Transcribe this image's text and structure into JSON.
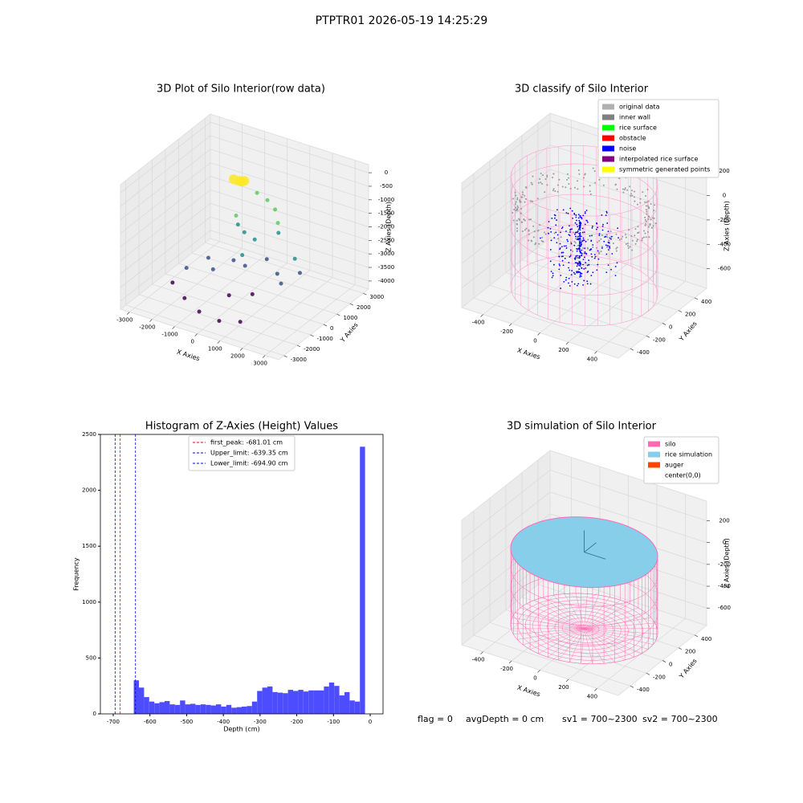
{
  "title": "PTPTR01 2026-05-19 14:25:29",
  "status": [
    "flag = 0",
    "avgDepth = 0 cm",
    "sv1 = 700~2300",
    "sv2 = 700~2300"
  ],
  "chart_data": [
    {
      "type": "scatter3d",
      "title": "3D Plot of Silo Interior(row data)",
      "xlabel": "X Axies",
      "ylabel": "Y Axies",
      "zlabel": "Z Axies (Depth)",
      "xlim": [
        -3400,
        3600
      ],
      "ylim": [
        -3400,
        3400
      ],
      "zlim": [
        -4300,
        300
      ],
      "xticks": [
        -3000,
        -2000,
        -1000,
        0,
        1000,
        2000,
        3000
      ],
      "yticks": [
        -3000,
        -2000,
        -1000,
        0,
        1000,
        2000,
        3000
      ],
      "zticks": [
        0,
        -500,
        -1000,
        -1500,
        -2000,
        -2500,
        -3000,
        -3500,
        -4000
      ],
      "x": [
        -1000,
        -1200,
        -900,
        -800,
        -1100,
        -400,
        0,
        400,
        700,
        900,
        -600,
        -200,
        200,
        -800,
        1800,
        2200,
        0,
        300,
        -1500,
        -1000,
        -500,
        500,
        1200,
        1600,
        -2000,
        -2500,
        -1500,
        -500,
        500,
        1200,
        0,
        800
      ],
      "y": [
        1500,
        1400,
        1700,
        1300,
        1600,
        1800,
        1900,
        1800,
        1500,
        1200,
        700,
        500,
        600,
        900,
        900,
        600,
        0,
        -300,
        0,
        -500,
        200,
        1000,
        600,
        200,
        -800,
        -1000,
        -1800,
        -2400,
        -2600,
        -2200,
        -1000,
        -600
      ],
      "z": [
        -800,
        -750,
        -850,
        -700,
        -900,
        -1200,
        -1400,
        -1600,
        -1900,
        -2100,
        -2000,
        -2100,
        -2300,
        -1800,
        -2700,
        -3000,
        -2700,
        -2900,
        -3200,
        -3300,
        -3100,
        -3100,
        -3300,
        -3400,
        -3400,
        -4000,
        -4000,
        -4000,
        -4000,
        -4000,
        -3800,
        -3700
      ]
    },
    {
      "type": "classify3d",
      "title": "3D classify of Silo Interior",
      "xlabel": "X Axies",
      "ylabel": "Y Axies",
      "zlabel": "Z Axies (Depth)",
      "xlim": [
        -550,
        550
      ],
      "ylim": [
        -550,
        550
      ],
      "zlim": [
        -760,
        260
      ],
      "xticks": [
        -400,
        -200,
        0,
        200,
        400
      ],
      "yticks": [
        -400,
        -200,
        0,
        200,
        400
      ],
      "zticks": [
        -600,
        -400,
        -200,
        0,
        200
      ],
      "legend": [
        {
          "name": "original data",
          "color": "#b0b0b0"
        },
        {
          "name": "inner wall",
          "color": "#808080"
        },
        {
          "name": "rice surface",
          "color": "#00ff00"
        },
        {
          "name": "obstacle",
          "color": "#ff0000"
        },
        {
          "name": "noise",
          "color": "#0000ff"
        },
        {
          "name": "interpolated rice surface",
          "color": "#800080"
        },
        {
          "name": "symmetric generated points",
          "color": "#ffff00"
        }
      ]
    },
    {
      "type": "histogram",
      "title": "Histogram of Z-Axies (Height) Values",
      "xlabel": "Depth (cm)",
      "ylabel": "Frequency",
      "color": "#4d4dff",
      "bins": [
        -644,
        -630,
        -616,
        -602,
        -588,
        -574,
        -560,
        -546,
        -532,
        -518,
        -504,
        -490,
        -476,
        -462,
        -448,
        -434,
        -420,
        -406,
        -392,
        -378,
        -364,
        -350,
        -336,
        -322,
        -308,
        -294,
        -280,
        -266,
        -252,
        -238,
        -224,
        -210,
        -196,
        -182,
        -168,
        -154,
        -140,
        -126,
        -112,
        -98,
        -84,
        -70,
        -56,
        -42,
        -28,
        -14
      ],
      "values": [
        300,
        235,
        150,
        110,
        95,
        105,
        115,
        85,
        80,
        120,
        85,
        90,
        80,
        85,
        80,
        75,
        85,
        65,
        80,
        55,
        60,
        65,
        70,
        110,
        205,
        235,
        245,
        195,
        190,
        185,
        215,
        205,
        215,
        200,
        210,
        210,
        210,
        245,
        280,
        250,
        165,
        195,
        120,
        110,
        2390
      ],
      "xlim": [
        -735,
        35
      ],
      "ylim": [
        0,
        2500
      ],
      "xticks": [
        -700,
        -600,
        -500,
        -400,
        -300,
        -200,
        -100,
        0
      ],
      "yticks": [
        0,
        500,
        1000,
        1500,
        2000,
        2500
      ],
      "lines": [
        {
          "label": "first_peak: -681.01 cm",
          "value": -681.01,
          "color": "#ff0000"
        },
        {
          "label": "Upper_limit: -639.35 cm",
          "value": -639.35,
          "color": "#0000ff"
        },
        {
          "label": "Lower_limit: -694.90 cm",
          "value": -694.9,
          "color": "#0000ff"
        }
      ]
    },
    {
      "type": "simulation3d",
      "title": "3D simulation of Silo Interior",
      "xlabel": "X Axies",
      "ylabel": "Y Axies",
      "zlabel": "Z Axies (Depth)",
      "xlim": [
        -550,
        550
      ],
      "ylim": [
        -550,
        550
      ],
      "zlim": [
        -760,
        380
      ],
      "xticks": [
        -400,
        -200,
        0,
        200,
        400
      ],
      "yticks": [
        -400,
        -200,
        0,
        200,
        400
      ],
      "zticks": [
        -600,
        -400,
        -200,
        0,
        200
      ],
      "legend": [
        {
          "name": "silo",
          "color": "#ff69b4"
        },
        {
          "name": "rice simulation",
          "color": "#87ceeb"
        },
        {
          "name": "auger",
          "color": "#ff4500"
        },
        {
          "name": "center(0,0)",
          "color": "#ffffff"
        }
      ]
    }
  ]
}
